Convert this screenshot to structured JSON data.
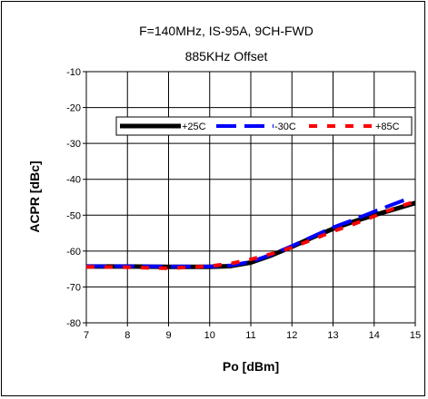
{
  "chart_data": {
    "type": "line",
    "title": "F=140MHz, IS-95A, 9CH-FWD",
    "subtitle": "885KHz Offset",
    "xlabel": "Po [dBm]",
    "ylabel": "ACPR [dBc]",
    "xlim": [
      7,
      15
    ],
    "ylim": [
      -80,
      -10
    ],
    "xticks": [
      7,
      8,
      9,
      10,
      11,
      12,
      13,
      14,
      15
    ],
    "yticks": [
      -10,
      -20,
      -30,
      -40,
      -50,
      -60,
      -70,
      -80
    ],
    "grid": true,
    "legend_position": "upper-middle",
    "series": [
      {
        "name": "+25C",
        "color": "#000000",
        "style": "solid",
        "points": [
          [
            7,
            -64.3
          ],
          [
            8,
            -64.3
          ],
          [
            9,
            -64.4
          ],
          [
            10,
            -64.4
          ],
          [
            10.5,
            -64.2
          ],
          [
            11,
            -63.2
          ],
          [
            11.5,
            -61.2
          ],
          [
            12,
            -58.8
          ],
          [
            12.5,
            -56.2
          ],
          [
            13,
            -53.8
          ],
          [
            13.5,
            -51.8
          ],
          [
            14,
            -50.0
          ],
          [
            14.5,
            -48.3
          ],
          [
            15,
            -46.6
          ]
        ]
      },
      {
        "name": "-30C",
        "color": "#0000ff",
        "style": "dashed",
        "points": [
          [
            7,
            -64.2
          ],
          [
            8,
            -64.2
          ],
          [
            9,
            -64.3
          ],
          [
            10,
            -64.3
          ],
          [
            10.5,
            -64.0
          ],
          [
            11,
            -63.0
          ],
          [
            11.5,
            -61.0
          ],
          [
            12,
            -58.6
          ],
          [
            12.5,
            -56.0
          ],
          [
            13,
            -53.4
          ],
          [
            13.5,
            -51.3
          ],
          [
            14,
            -49.0
          ],
          [
            14.5,
            -46.8
          ],
          [
            14.85,
            -45.3
          ]
        ]
      },
      {
        "name": "+85C",
        "color": "#ff0000",
        "style": "dashed",
        "points": [
          [
            7,
            -64.4
          ],
          [
            8,
            -64.5
          ],
          [
            9,
            -64.8
          ],
          [
            10,
            -64.2
          ],
          [
            10.5,
            -63.5
          ],
          [
            11,
            -62.3
          ],
          [
            11.5,
            -60.8
          ],
          [
            12,
            -59.0
          ],
          [
            12.5,
            -56.8
          ],
          [
            13,
            -54.5
          ],
          [
            13.5,
            -52.5
          ],
          [
            14,
            -50.3
          ],
          [
            14.5,
            -48.0
          ],
          [
            15,
            -46.2
          ]
        ]
      }
    ]
  }
}
